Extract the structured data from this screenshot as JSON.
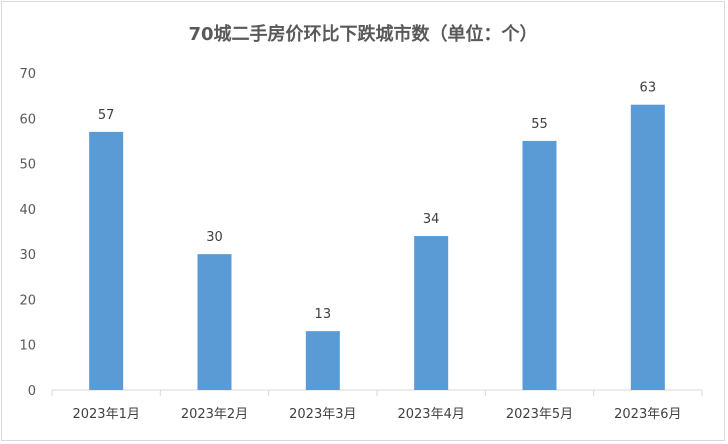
{
  "chart_data": {
    "type": "bar",
    "title": "70城二手房价环比下跌城市数（单位：个）",
    "categories": [
      "2023年1月",
      "2023年2月",
      "2023年3月",
      "2023年4月",
      "2023年5月",
      "2023年6月"
    ],
    "values": [
      57,
      30,
      13,
      34,
      55,
      63
    ],
    "ylim": [
      0,
      70
    ],
    "yticks": [
      0,
      10,
      20,
      30,
      40,
      50,
      60,
      70
    ],
    "xlabel": "",
    "ylabel": "",
    "grid": false,
    "legend": "none",
    "bar_color": "#5b9bd5"
  }
}
